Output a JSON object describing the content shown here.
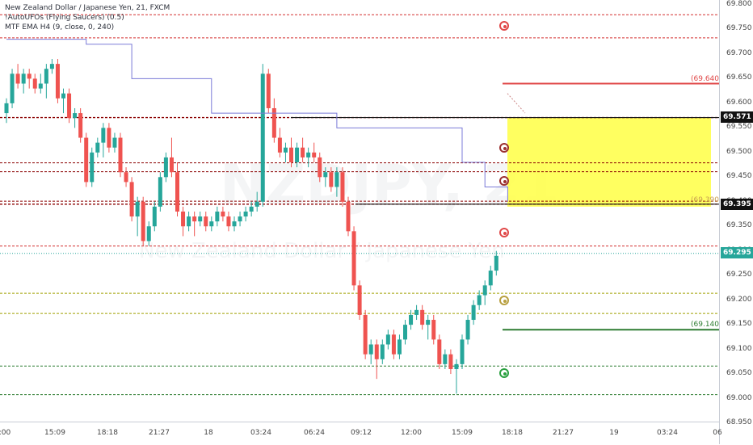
{
  "legend": {
    "title": "New Zealand Dollar / Japanese Yen, 21, FXCM",
    "indicator1": "!AutoUFOs (Flying Saucers) (0.5)",
    "indicator2": "MTF EMA H4 (9, close, 0, 240)"
  },
  "watermark": {
    "symbol": "NZDJPY, 21",
    "description": "New Zealand Dollar / Japanese Yen"
  },
  "price_ticks": [
    "69.800",
    "69.750",
    "69.700",
    "69.650",
    "69.600",
    "69.550",
    "69.500",
    "69.450",
    "69.400",
    "69.350",
    "69.300",
    "69.250",
    "69.200",
    "69.150",
    "69.100",
    "69.050",
    "69.000",
    "68.950"
  ],
  "time_ticks": [
    ":00",
    "15:09",
    "18:18",
    "21:27",
    "18",
    "03:24",
    "06:24",
    "09:12",
    "12:00",
    "15:09",
    "18:18",
    "21:27",
    "19",
    "03:24",
    "06"
  ],
  "price_tags": {
    "upper_box": "69.571",
    "lower_box": "69.395",
    "current": "69.295"
  },
  "level_labels": {
    "target_up": "(69.640)",
    "box_bottom": "(69.390)",
    "target_down": "(69.140)"
  },
  "colors": {
    "bull": "#26a69a",
    "bear": "#ef5350",
    "ema": "#7b7bd8",
    "zone": "#ffff44",
    "red_level": "#d32f2f",
    "green_level": "#2e7d32",
    "olive_level": "#a0a000"
  },
  "chart_data": {
    "type": "candlestick",
    "y_range": [
      68.95,
      69.8
    ],
    "candles_ohlc": [
      [
        69.58,
        69.61,
        69.56,
        69.6
      ],
      [
        69.6,
        69.67,
        69.59,
        69.66
      ],
      [
        69.66,
        69.68,
        69.63,
        69.64
      ],
      [
        69.64,
        69.67,
        69.62,
        69.66
      ],
      [
        69.66,
        69.67,
        69.63,
        69.65
      ],
      [
        69.65,
        69.66,
        69.62,
        69.63
      ],
      [
        69.63,
        69.66,
        69.62,
        69.64
      ],
      [
        69.64,
        69.68,
        69.61,
        69.67
      ],
      [
        69.67,
        69.69,
        69.66,
        69.68
      ],
      [
        69.68,
        69.69,
        69.6,
        69.61
      ],
      [
        69.61,
        69.63,
        69.58,
        69.62
      ],
      [
        69.62,
        69.63,
        69.56,
        69.57
      ],
      [
        69.57,
        69.59,
        69.55,
        69.58
      ],
      [
        69.58,
        69.59,
        69.52,
        69.53
      ],
      [
        69.53,
        69.54,
        69.43,
        69.44
      ],
      [
        69.44,
        69.51,
        69.43,
        69.5
      ],
      [
        69.5,
        69.53,
        69.49,
        69.52
      ],
      [
        69.52,
        69.56,
        69.49,
        69.55
      ],
      [
        69.55,
        69.56,
        69.5,
        69.51
      ],
      [
        69.51,
        69.54,
        69.5,
        69.53
      ],
      [
        69.53,
        69.54,
        69.45,
        69.46
      ],
      [
        69.46,
        69.47,
        69.43,
        69.44
      ],
      [
        69.44,
        69.45,
        69.36,
        69.37
      ],
      [
        69.37,
        69.41,
        69.33,
        69.4
      ],
      [
        69.4,
        69.41,
        69.31,
        69.32
      ],
      [
        69.32,
        69.36,
        69.31,
        69.35
      ],
      [
        69.35,
        69.4,
        69.34,
        69.39
      ],
      [
        69.39,
        69.46,
        69.38,
        69.45
      ],
      [
        69.45,
        69.5,
        69.44,
        69.49
      ],
      [
        69.49,
        69.53,
        69.45,
        69.46
      ],
      [
        69.46,
        69.48,
        69.37,
        69.38
      ],
      [
        69.38,
        69.39,
        69.33,
        69.35
      ],
      [
        69.35,
        69.38,
        69.34,
        69.37
      ],
      [
        69.37,
        69.38,
        69.33,
        69.36
      ],
      [
        69.36,
        69.38,
        69.35,
        69.37
      ],
      [
        69.37,
        69.38,
        69.34,
        69.35
      ],
      [
        69.35,
        69.37,
        69.34,
        69.36
      ],
      [
        69.36,
        69.39,
        69.35,
        69.38
      ],
      [
        69.38,
        69.39,
        69.36,
        69.37
      ],
      [
        69.37,
        69.38,
        69.34,
        69.35
      ],
      [
        69.35,
        69.37,
        69.34,
        69.36
      ],
      [
        69.36,
        69.38,
        69.35,
        69.37
      ],
      [
        69.37,
        69.39,
        69.36,
        69.38
      ],
      [
        69.38,
        69.4,
        69.37,
        69.39
      ],
      [
        69.39,
        69.42,
        69.38,
        69.4
      ],
      [
        69.4,
        69.68,
        69.39,
        69.66
      ],
      [
        69.66,
        69.67,
        69.58,
        69.59
      ],
      [
        69.59,
        69.61,
        69.52,
        69.53
      ],
      [
        69.53,
        69.55,
        69.49,
        69.5
      ],
      [
        69.5,
        69.52,
        69.48,
        69.51
      ],
      [
        69.51,
        69.53,
        69.47,
        69.48
      ],
      [
        69.48,
        69.52,
        69.47,
        69.51
      ],
      [
        69.51,
        69.53,
        69.48,
        69.49
      ],
      [
        69.49,
        69.51,
        69.47,
        69.5
      ],
      [
        69.5,
        69.52,
        69.48,
        69.49
      ],
      [
        69.49,
        69.5,
        69.44,
        69.45
      ],
      [
        69.45,
        69.47,
        69.43,
        69.46
      ],
      [
        69.46,
        69.47,
        69.42,
        69.43
      ],
      [
        69.43,
        69.47,
        69.41,
        69.46
      ],
      [
        69.46,
        69.47,
        69.39,
        69.4
      ],
      [
        69.4,
        69.41,
        69.33,
        69.34
      ],
      [
        69.34,
        69.35,
        69.22,
        69.23
      ],
      [
        69.23,
        69.24,
        69.16,
        69.17
      ],
      [
        69.17,
        69.18,
        69.08,
        69.09
      ],
      [
        69.09,
        69.12,
        69.07,
        69.11
      ],
      [
        69.11,
        69.12,
        69.04,
        69.08
      ],
      [
        69.08,
        69.12,
        69.07,
        69.11
      ],
      [
        69.11,
        69.14,
        69.1,
        69.13
      ],
      [
        69.13,
        69.14,
        69.08,
        69.09
      ],
      [
        69.09,
        69.13,
        69.08,
        69.12
      ],
      [
        69.12,
        69.16,
        69.11,
        69.15
      ],
      [
        69.15,
        69.18,
        69.14,
        69.17
      ],
      [
        69.17,
        69.19,
        69.16,
        69.18
      ],
      [
        69.18,
        69.19,
        69.14,
        69.15
      ],
      [
        69.15,
        69.17,
        69.12,
        69.16
      ],
      [
        69.16,
        69.17,
        69.11,
        69.12
      ],
      [
        69.12,
        69.13,
        69.06,
        69.07
      ],
      [
        69.07,
        69.1,
        69.06,
        69.09
      ],
      [
        69.09,
        69.1,
        69.05,
        69.06
      ],
      [
        69.06,
        69.08,
        69.01,
        69.07
      ],
      [
        69.07,
        69.13,
        69.06,
        69.12
      ],
      [
        69.12,
        69.17,
        69.11,
        69.16
      ],
      [
        69.16,
        69.2,
        69.15,
        69.19
      ],
      [
        69.19,
        69.22,
        69.18,
        69.21
      ],
      [
        69.21,
        69.24,
        69.19,
        69.23
      ],
      [
        69.23,
        69.27,
        69.22,
        69.26
      ],
      [
        69.26,
        69.3,
        69.25,
        69.29
      ]
    ],
    "ema_steps": [
      [
        0,
        69.73
      ],
      [
        14,
        69.73
      ],
      [
        14,
        69.72
      ],
      [
        22,
        69.72
      ],
      [
        22,
        69.65
      ],
      [
        36,
        69.65
      ],
      [
        36,
        69.58
      ],
      [
        58,
        69.58
      ],
      [
        58,
        69.55
      ],
      [
        80,
        69.55
      ],
      [
        80,
        69.48
      ],
      [
        84,
        69.48
      ],
      [
        84,
        69.43
      ],
      [
        88,
        69.43
      ],
      [
        88,
        69.4
      ]
    ],
    "levels": [
      {
        "price": 69.78,
        "style": "red-dotted"
      },
      {
        "price": 69.733,
        "style": "red-dotted"
      },
      {
        "price": 69.571,
        "style": "dark-dotted"
      },
      {
        "price": 69.479,
        "style": "dark-dotted"
      },
      {
        "price": 69.461,
        "style": "dark-dotted"
      },
      {
        "price": 69.401,
        "style": "dark-dotted"
      },
      {
        "price": 69.395,
        "style": "dark-dotted"
      },
      {
        "price": 69.31,
        "style": "red-dotted"
      },
      {
        "price": 69.295,
        "style": "teal-dotted"
      },
      {
        "price": 69.214,
        "style": "olive-dotted"
      },
      {
        "price": 69.173,
        "style": "olive-dotted"
      },
      {
        "price": 69.066,
        "style": "green-dotted"
      },
      {
        "price": 69.008,
        "style": "green-dotted"
      }
    ],
    "targets": [
      {
        "price": 69.64,
        "style": "red-solid"
      },
      {
        "price": 69.14,
        "style": "green-solid"
      }
    ],
    "zone": {
      "top": 69.571,
      "bottom": 69.39
    },
    "ufos": [
      {
        "price": 69.757,
        "kind": "red"
      },
      {
        "price": 69.51,
        "kind": "darkred"
      },
      {
        "price": 69.442,
        "kind": "darkred"
      },
      {
        "price": 69.337,
        "kind": "red"
      },
      {
        "price": 69.2,
        "kind": "olive"
      },
      {
        "price": 69.051,
        "kind": "green"
      }
    ]
  }
}
